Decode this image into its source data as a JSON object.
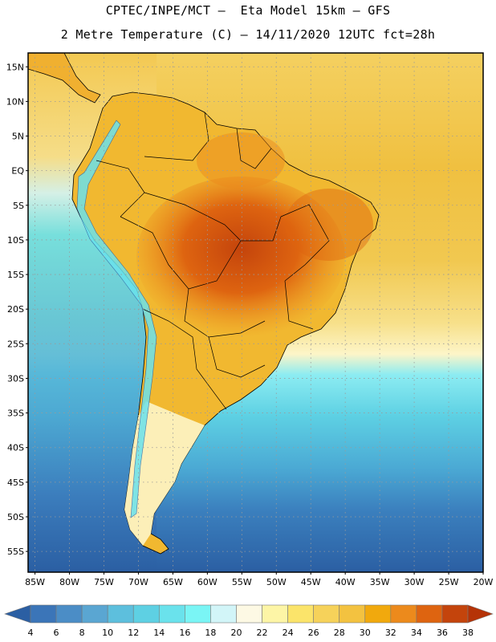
{
  "header": {
    "line1": "CPTEC/INPE/MCT –  Eta Model 15km – GFS",
    "line2": "2 Metre Temperature (C) – 14/11/2020 12UTC fct=28h"
  },
  "map": {
    "lat_ticks": [
      "15N",
      "10N",
      "5N",
      "EQ",
      "5S",
      "10S",
      "15S",
      "20S",
      "25S",
      "30S",
      "35S",
      "40S",
      "45S",
      "50S",
      "55S"
    ],
    "lon_ticks": [
      "85W",
      "80W",
      "75W",
      "70W",
      "65W",
      "60W",
      "55W",
      "50W",
      "45W",
      "40W",
      "35W",
      "30W",
      "25W",
      "20W"
    ],
    "lat_range": [
      17,
      -58
    ],
    "lon_range": [
      -86,
      -20
    ]
  },
  "colorbar": {
    "labels": [
      "4",
      "6",
      "8",
      "10",
      "12",
      "14",
      "16",
      "18",
      "20",
      "22",
      "24",
      "26",
      "28",
      "30",
      "32",
      "34",
      "36",
      "38"
    ],
    "colors": [
      "#2b5fa3",
      "#3b75b8",
      "#4b8dc6",
      "#5aa6d2",
      "#5dbfdd",
      "#5ed0e3",
      "#6ae2ec",
      "#7af5f5",
      "#d2f5f8",
      "#fdf9e4",
      "#fdf5a6",
      "#fbe46a",
      "#f6d25a",
      "#f3c240",
      "#f1a90d",
      "#ec8a1c",
      "#de6410",
      "#c4440c",
      "#b53307"
    ]
  }
}
